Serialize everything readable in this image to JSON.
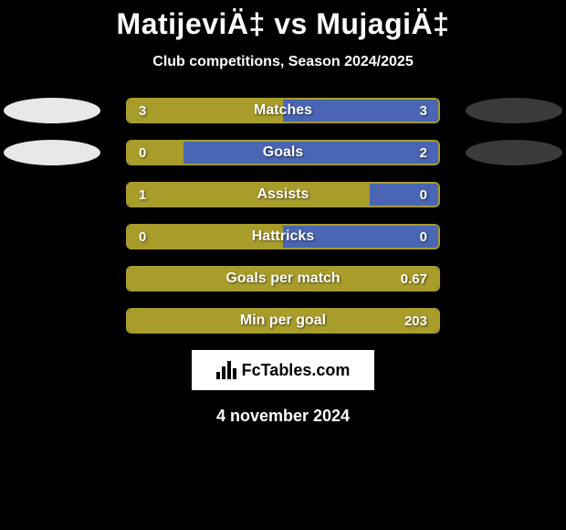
{
  "title": "MatijeviÄ‡ vs MujagiÄ‡",
  "subtitle": "Club competitions, Season 2024/2025",
  "date": "4 november 2024",
  "colors": {
    "left": "#a89c2b",
    "right": "#4a65b3",
    "background": "#000000",
    "text": "#ffffff",
    "brand_bg": "#ffffff",
    "brand_fg": "#000000"
  },
  "brand": "FcTables.com",
  "ellipses": [
    {
      "side": "left",
      "row": 0,
      "color": "#e8e8e8"
    },
    {
      "side": "left",
      "row": 1,
      "color": "#e8e8e8"
    },
    {
      "side": "right",
      "row": 0,
      "color": "#3a3a3a"
    },
    {
      "side": "right",
      "row": 1,
      "color": "#3a3a3a"
    }
  ],
  "rows": [
    {
      "label": "Matches",
      "left": "3",
      "right": "3",
      "left_pct": 50,
      "right_pct": 50
    },
    {
      "label": "Goals",
      "left": "0",
      "right": "2",
      "left_pct": 18,
      "right_pct": 82
    },
    {
      "label": "Assists",
      "left": "1",
      "right": "0",
      "left_pct": 78,
      "right_pct": 22
    },
    {
      "label": "Hattricks",
      "left": "0",
      "right": "0",
      "left_pct": 50,
      "right_pct": 50
    },
    {
      "label": "Goals per match",
      "left": "",
      "right": "0.67",
      "left_pct": 100,
      "right_pct": 0
    },
    {
      "label": "Min per goal",
      "left": "",
      "right": "203",
      "left_pct": 100,
      "right_pct": 0
    }
  ]
}
